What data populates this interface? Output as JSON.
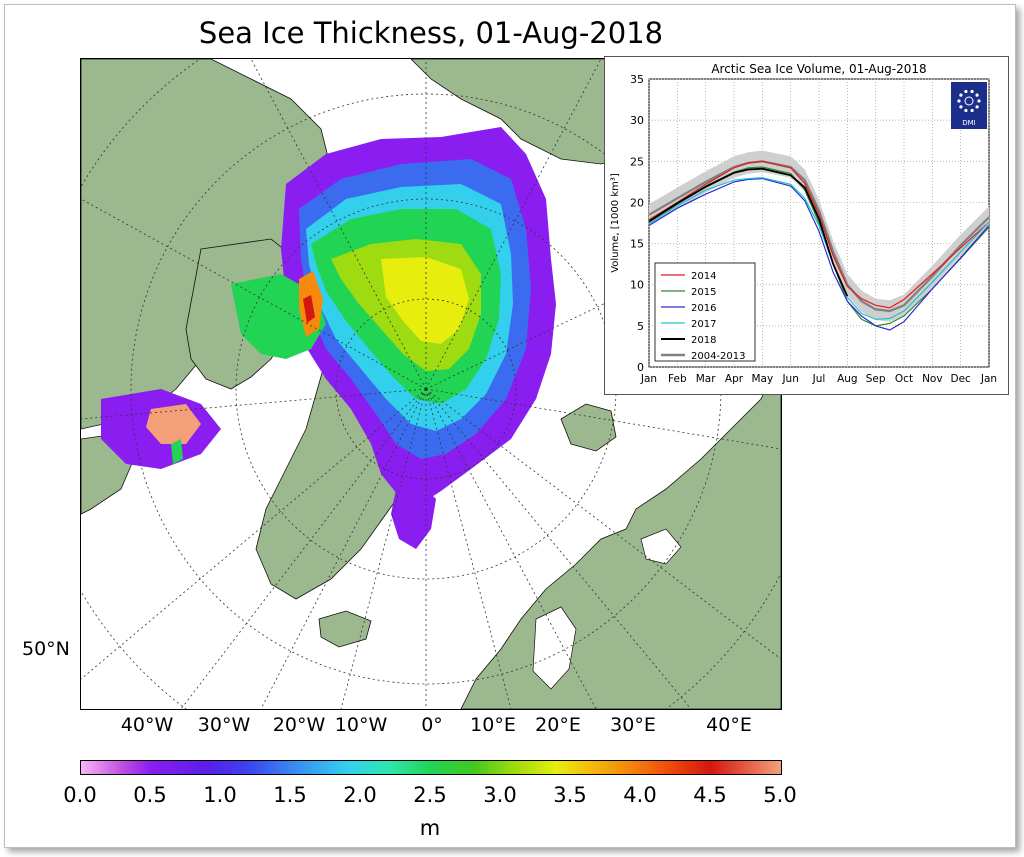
{
  "page": {
    "title": "Sea Ice Thickness, 01-Aug-2018",
    "lat_label": "50°N",
    "lon_labels": [
      "40°W",
      "30°W",
      "20°W",
      "10°W",
      "0°",
      "10°E",
      "20°E",
      "30°E",
      "40°E"
    ],
    "colorbar": {
      "ticks": [
        "0.0",
        "0.5",
        "1.0",
        "1.5",
        "2.0",
        "2.5",
        "3.0",
        "3.5",
        "4.0",
        "4.5",
        "5.0"
      ],
      "unit": "m"
    },
    "colors": {
      "land": "#9bb88e",
      "ocean": "#ffffff",
      "ice_thin": "#8a1ef0",
      "ice_mid": "#21d454",
      "ice_thick": "#e7ee0e"
    }
  },
  "logo": {
    "text": "DMI"
  },
  "chart_data": {
    "type": "line",
    "title": "Arctic Sea Ice Volume, 01-Aug-2018",
    "xlabel": "",
    "ylabel": "Volume, [1000 km³]",
    "xlim": [
      0,
      12
    ],
    "ylim": [
      0,
      35
    ],
    "yticks": [
      "0",
      "5",
      "10",
      "15",
      "20",
      "25",
      "30",
      "35"
    ],
    "xticks": [
      "Jan",
      "Feb",
      "Mar",
      "Apr",
      "May",
      "Jun",
      "Jul",
      "Aug",
      "Sep",
      "Oct",
      "Nov",
      "Dec",
      "Jan"
    ],
    "grid": true,
    "legend_position": "lower-left",
    "series": [
      {
        "name": "2004-2013",
        "color": "#808080",
        "band": true,
        "x": [
          0,
          1,
          2,
          3,
          3.5,
          4,
          5,
          5.5,
          6,
          6.5,
          7,
          7.5,
          8,
          8.5,
          9,
          10,
          11,
          12
        ],
        "y": [
          18.5,
          20.5,
          22.5,
          24.3,
          24.8,
          25.0,
          24.3,
          22.7,
          19.0,
          14.0,
          10.0,
          8.0,
          7.0,
          6.8,
          7.5,
          11.0,
          14.8,
          18.2
        ]
      },
      {
        "name": "2014",
        "color": "#e41a1c",
        "x": [
          0,
          1,
          2,
          3,
          3.5,
          4,
          5,
          5.5,
          6,
          6.5,
          7,
          7.5,
          8,
          8.5,
          9,
          10,
          11,
          12
        ],
        "y": [
          17.9,
          20.0,
          22.2,
          24.2,
          24.8,
          25.0,
          24.2,
          22.3,
          18.5,
          13.5,
          9.8,
          8.3,
          7.5,
          7.2,
          8.2,
          11.3,
          14.5,
          17.6
        ]
      },
      {
        "name": "2015",
        "color": "#2e8b2e",
        "x": [
          0,
          1,
          2,
          3,
          3.5,
          4,
          5,
          5.5,
          6,
          6.5,
          7,
          7.5,
          8,
          8.5,
          9,
          10,
          11,
          12
        ],
        "y": [
          17.6,
          19.8,
          22.0,
          23.7,
          24.2,
          24.3,
          23.5,
          21.5,
          17.5,
          12.5,
          8.0,
          5.8,
          5.0,
          5.3,
          6.2,
          9.5,
          13.2,
          17.0
        ]
      },
      {
        "name": "2016",
        "color": "#2c2cd6",
        "x": [
          0,
          1,
          2,
          3,
          3.5,
          4,
          5,
          5.5,
          6,
          6.5,
          7,
          7.5,
          8,
          8.5,
          9,
          10,
          11,
          12
        ],
        "y": [
          17.2,
          19.3,
          21.0,
          22.5,
          22.8,
          22.9,
          22.0,
          20.2,
          16.5,
          11.5,
          8.0,
          6.2,
          5.0,
          4.5,
          5.5,
          9.5,
          13.3,
          17.2
        ]
      },
      {
        "name": "2017",
        "color": "#20c0d0",
        "x": [
          0,
          1,
          2,
          3,
          3.5,
          4,
          5,
          5.5,
          6,
          6.5,
          7,
          7.5,
          8,
          8.5,
          9,
          10,
          11,
          12
        ],
        "y": [
          17.4,
          19.6,
          21.5,
          22.7,
          22.9,
          23.0,
          22.2,
          20.5,
          17.2,
          12.5,
          8.5,
          6.5,
          5.8,
          5.9,
          6.8,
          10.3,
          14.0,
          17.6
        ]
      },
      {
        "name": "2018",
        "color": "#000000",
        "x": [
          0,
          1,
          2,
          3,
          3.5,
          4,
          5,
          5.5,
          6,
          6.5,
          7
        ],
        "y": [
          17.7,
          19.9,
          21.9,
          23.6,
          24.0,
          24.1,
          23.3,
          21.8,
          18.0,
          12.5,
          8.6
        ]
      }
    ]
  }
}
